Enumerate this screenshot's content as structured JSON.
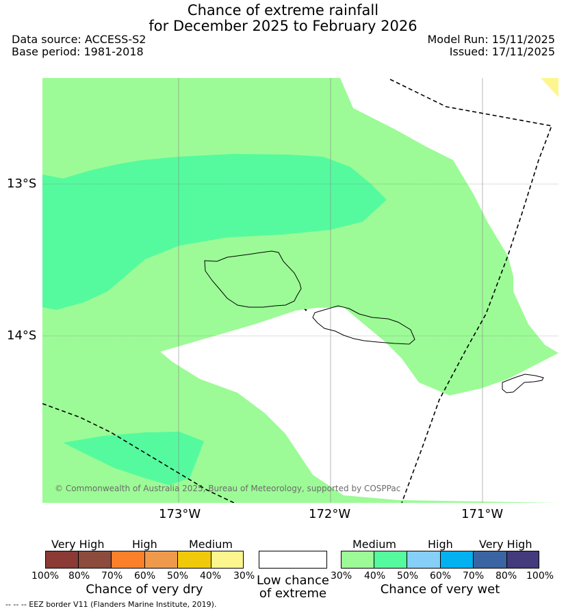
{
  "title": {
    "line1": "Chance of extreme rainfall",
    "line2": "for December 2025 to February 2026"
  },
  "header": {
    "data_source": "Data source: ACCESS-S2",
    "base_period": "Base period: 1981-2018",
    "model_run": "Model Run: 15/11/2025",
    "issued": "Issued: 17/11/2025"
  },
  "map": {
    "lat_labels": [
      "13°S",
      "14°S"
    ],
    "lon_labels": [
      "173°W",
      "172°W",
      "171°W"
    ],
    "credit": "© Commonwealth of Australia 2025, Bureau of Meteorology, supported by COSPPac",
    "colors": {
      "wet_medium": "#9cfb96",
      "wet_medium_high": "#55fa9e",
      "dry_medium_low": "#fdf68e",
      "land_outline": "#000000",
      "eez_line": "#000000"
    }
  },
  "legend": {
    "dry": {
      "headings": [
        "Very High",
        "High",
        "Medium"
      ],
      "ticks": [
        "100%",
        "80%",
        "70%",
        "60%",
        "50%",
        "40%",
        "30%"
      ],
      "colors": [
        "#8b3a35",
        "#8c4b3c",
        "#fc7f2a",
        "#ef9a4b",
        "#f1c90b",
        "#fdf68e"
      ],
      "title": "Chance of very dry"
    },
    "low": {
      "title_line1": "Low chance",
      "title_line2": "of extreme",
      "color": "#ffffff"
    },
    "wet": {
      "headings": [
        "Medium",
        "High",
        "Very High"
      ],
      "ticks": [
        "30%",
        "40%",
        "50%",
        "60%",
        "70%",
        "80%",
        "100%"
      ],
      "colors": [
        "#9cfb96",
        "#55fa9e",
        "#86cff8",
        "#03b1f0",
        "#3b64a3",
        "#433b7c"
      ],
      "title": "Chance of very wet"
    }
  },
  "footnote": "--  --  -- EEZ border V11 (Flanders Marine Institute, 2019)."
}
